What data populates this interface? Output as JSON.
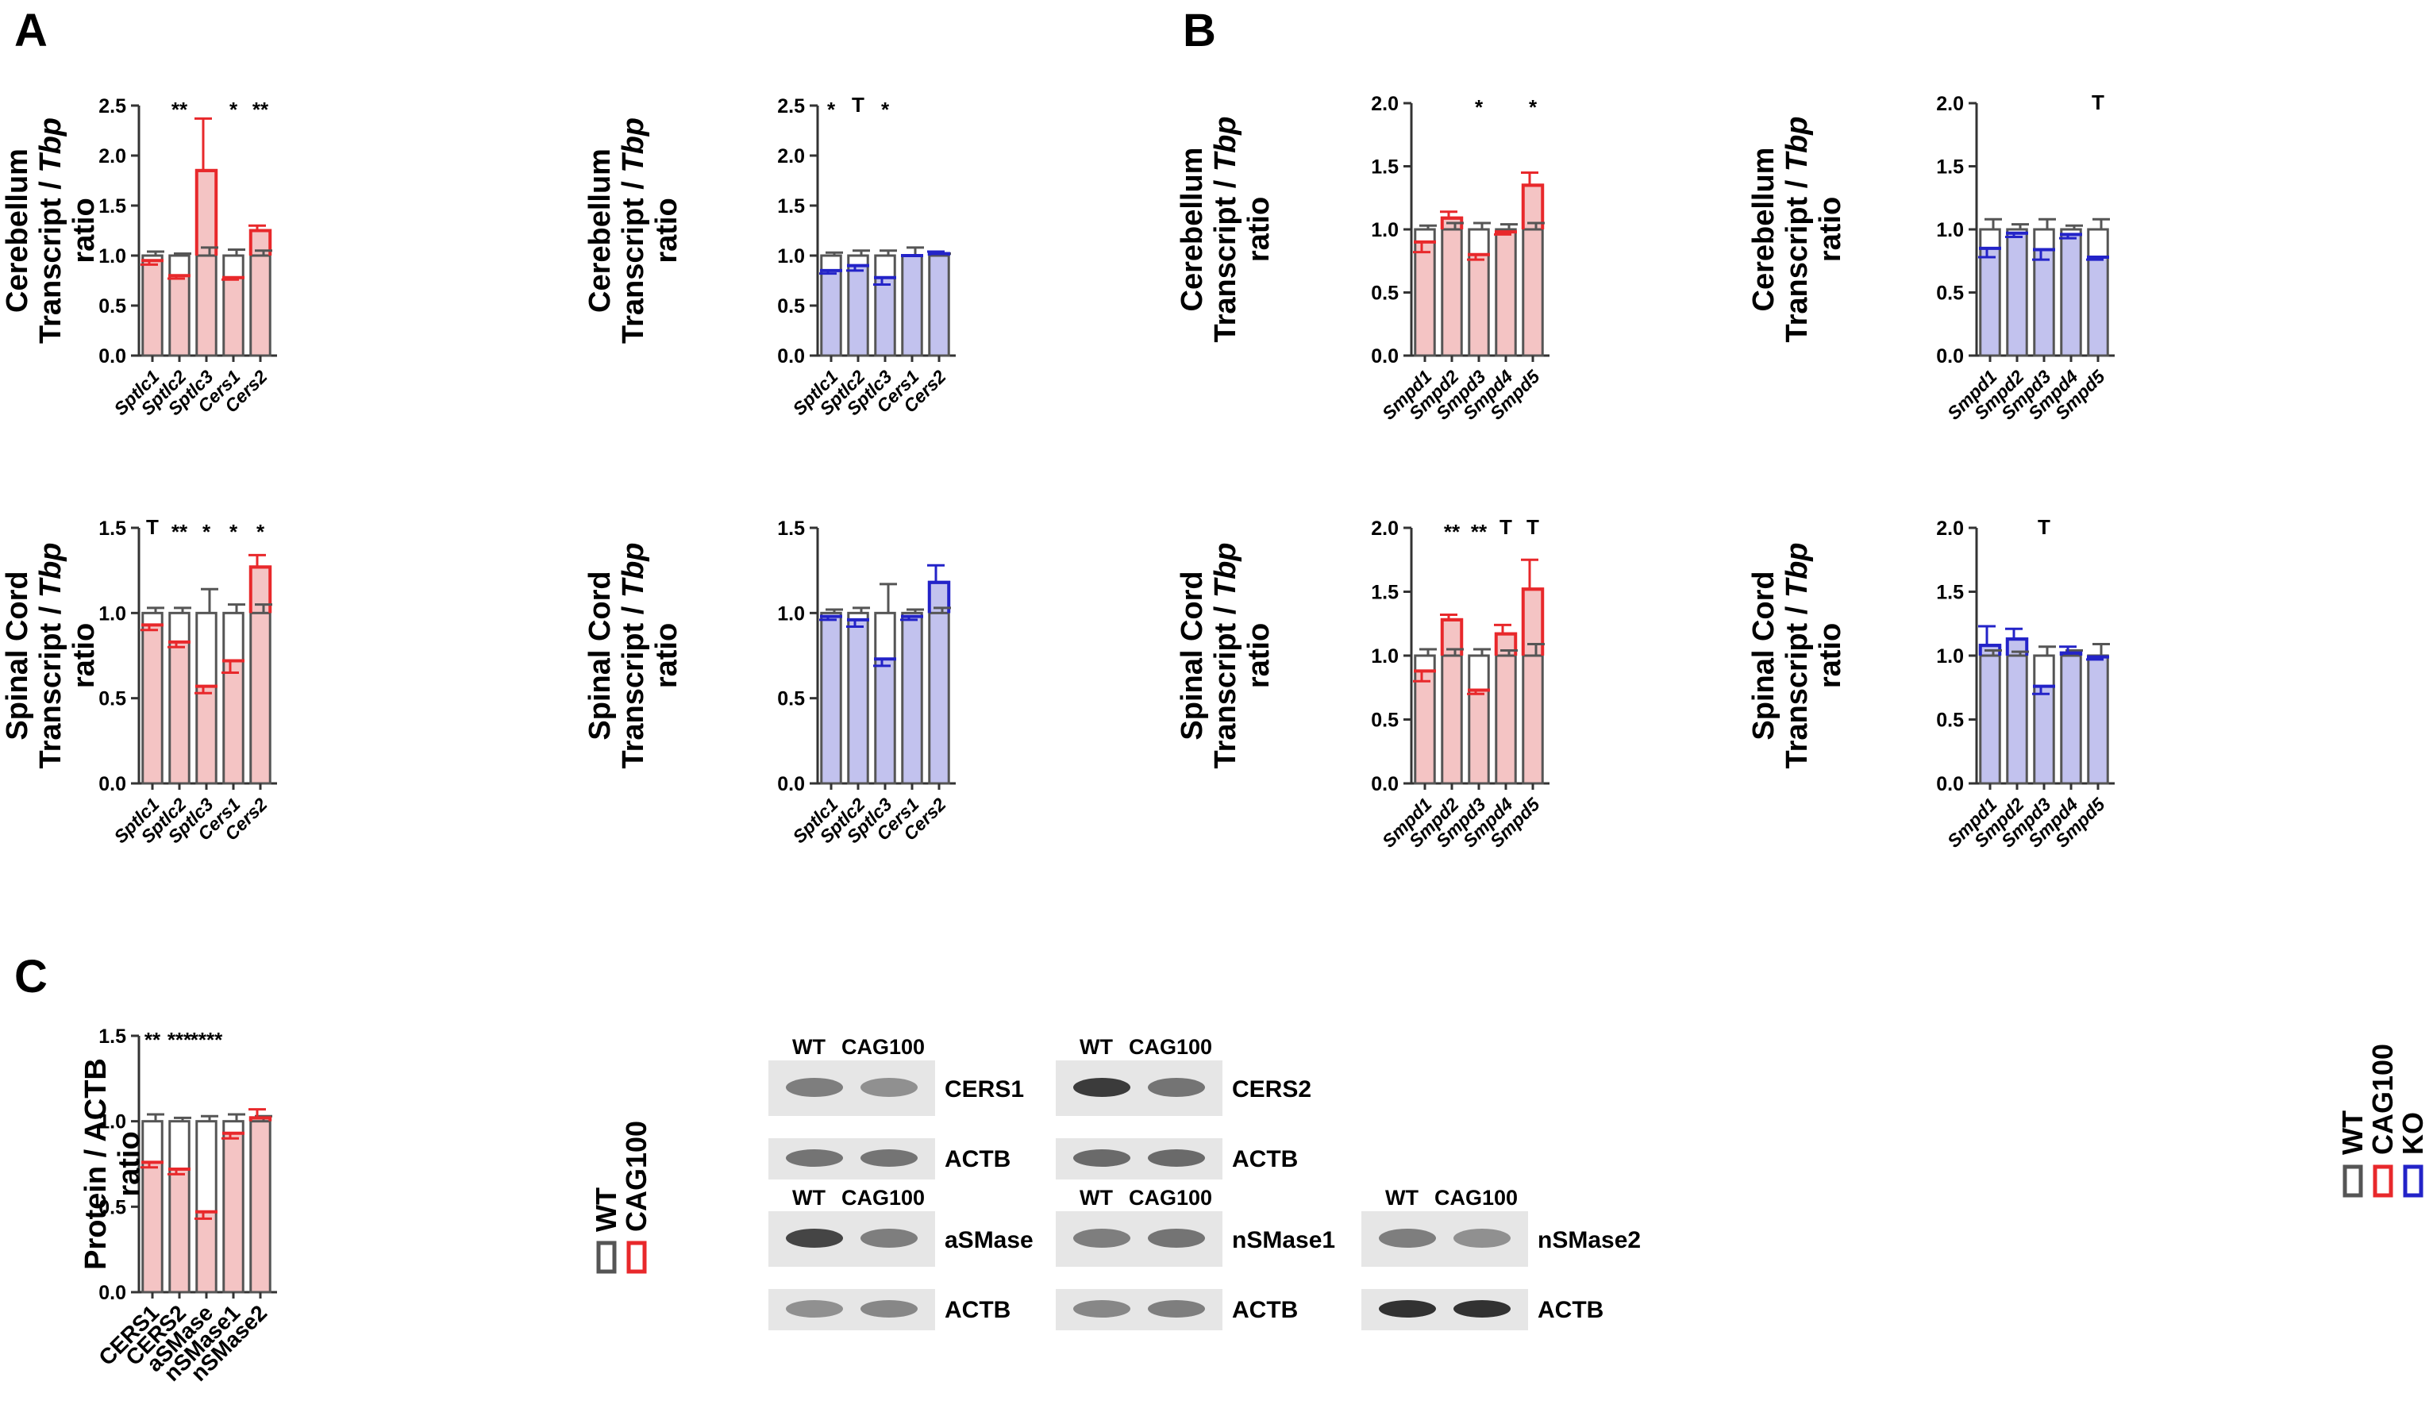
{
  "panel_labels": [
    "A",
    "B",
    "C"
  ],
  "colors": {
    "wt": "#555555",
    "cag100": "#e8282b",
    "ko": "#2323c8",
    "cag100_fill": "#f4c4c4",
    "ko_fill": "#c2c2ee"
  },
  "legend_transcript": [
    "WT",
    "CAG100",
    "KO"
  ],
  "legend_protein": [
    "WT",
    "CAG100"
  ],
  "chart_data": [
    {
      "id": "A-cb-cag",
      "type": "bar",
      "group": "CAG100",
      "ylabel": [
        "Cerebellum",
        "Transcript / Tbp",
        "ratio"
      ],
      "ylim": [
        0,
        2.5
      ],
      "yticks": [
        "0.0",
        "0.5",
        "1.0",
        "1.5",
        "2.0",
        "2.5"
      ],
      "categories": [
        "Sptlc1",
        "Sptlc2",
        "Sptlc3",
        "Cers1",
        "Cers2"
      ],
      "italic": true,
      "series": [
        {
          "name": "WT",
          "values": [
            1.0,
            1.0,
            1.0,
            1.0,
            1.0
          ],
          "errors": [
            0.04,
            0.02,
            0.08,
            0.06,
            0.05
          ]
        },
        {
          "name": "CAG100",
          "values": [
            0.95,
            0.8,
            1.85,
            0.78,
            1.25
          ],
          "errors": [
            0.04,
            0.03,
            0.52,
            0.02,
            0.05
          ]
        }
      ],
      "significance": [
        "",
        "**",
        "",
        "*",
        "**"
      ]
    },
    {
      "id": "A-cb-ko",
      "type": "bar",
      "group": "KO",
      "ylabel": [
        "Cerebellum",
        "Transcript / Tbp",
        "ratio"
      ],
      "ylim": [
        0,
        2.5
      ],
      "yticks": [
        "0.0",
        "0.5",
        "1.0",
        "1.5",
        "2.0",
        "2.5"
      ],
      "categories": [
        "Sptlc1",
        "Sptlc2",
        "Sptlc3",
        "Cers1",
        "Cers2"
      ],
      "italic": true,
      "series": [
        {
          "name": "WT",
          "values": [
            1.0,
            1.0,
            1.0,
            1.0,
            1.0
          ],
          "errors": [
            0.03,
            0.05,
            0.05,
            0.08,
            0.02
          ]
        },
        {
          "name": "KO",
          "values": [
            0.85,
            0.9,
            0.78,
            1.0,
            1.02
          ],
          "errors": [
            0.03,
            0.05,
            0.07,
            0.0,
            0.02
          ]
        }
      ],
      "significance": [
        "*",
        "T",
        "*",
        "",
        ""
      ]
    },
    {
      "id": "A-sc-cag",
      "type": "bar",
      "group": "CAG100",
      "ylabel": [
        "Spinal Cord",
        "Transcript / Tbp",
        "ratio"
      ],
      "ylim": [
        0,
        1.5
      ],
      "yticks": [
        "0.0",
        "0.5",
        "1.0",
        "1.5"
      ],
      "categories": [
        "Sptlc1",
        "Sptlc2",
        "Sptlc3",
        "Cers1",
        "Cers2"
      ],
      "italic": true,
      "series": [
        {
          "name": "WT",
          "values": [
            1.0,
            1.0,
            1.0,
            1.0,
            1.0
          ],
          "errors": [
            0.03,
            0.03,
            0.14,
            0.05,
            0.05
          ]
        },
        {
          "name": "CAG100",
          "values": [
            0.93,
            0.83,
            0.57,
            0.72,
            1.27
          ],
          "errors": [
            0.03,
            0.03,
            0.04,
            0.07,
            0.07
          ]
        }
      ],
      "significance": [
        "T",
        "**",
        "*",
        "*",
        "*"
      ]
    },
    {
      "id": "A-sc-ko",
      "type": "bar",
      "group": "KO",
      "ylabel": [
        "Spinal Cord",
        "Transcript / Tbp",
        "ratio"
      ],
      "ylim": [
        0,
        1.5
      ],
      "yticks": [
        "0.0",
        "0.5",
        "1.0",
        "1.5"
      ],
      "categories": [
        "Sptlc1",
        "Sptlc2",
        "Sptlc3",
        "Cers1",
        "Cers2"
      ],
      "italic": true,
      "series": [
        {
          "name": "WT",
          "values": [
            1.0,
            1.0,
            1.0,
            1.0,
            1.0
          ],
          "errors": [
            0.02,
            0.03,
            0.17,
            0.02,
            0.03
          ]
        },
        {
          "name": "KO",
          "values": [
            0.98,
            0.96,
            0.73,
            0.98,
            1.18
          ],
          "errors": [
            0.02,
            0.04,
            0.04,
            0.02,
            0.1
          ]
        }
      ],
      "significance": [
        "",
        "",
        "",
        "",
        ""
      ]
    },
    {
      "id": "B-cb-cag",
      "type": "bar",
      "group": "CAG100",
      "ylabel": [
        "Cerebellum",
        "Transcript / Tbp",
        "ratio"
      ],
      "ylim": [
        0,
        2.0
      ],
      "yticks": [
        "0.0",
        "0.5",
        "1.0",
        "1.5",
        "2.0"
      ],
      "categories": [
        "Smpd1",
        "Smpd2",
        "Smpd3",
        "Smpd4",
        "Smpd5"
      ],
      "italic": true,
      "series": [
        {
          "name": "WT",
          "values": [
            1.0,
            1.0,
            1.0,
            1.0,
            1.0
          ],
          "errors": [
            0.03,
            0.05,
            0.05,
            0.04,
            0.05
          ]
        },
        {
          "name": "CAG100",
          "values": [
            0.9,
            1.09,
            0.8,
            0.98,
            1.35
          ],
          "errors": [
            0.08,
            0.05,
            0.04,
            0.02,
            0.1
          ]
        }
      ],
      "significance": [
        "",
        "",
        "*",
        "",
        "*"
      ]
    },
    {
      "id": "B-cb-ko",
      "type": "bar",
      "group": "KO",
      "ylabel": [
        "Cerebellum",
        "Transcript / Tbp",
        "ratio"
      ],
      "ylim": [
        0,
        2.0
      ],
      "yticks": [
        "0.0",
        "0.5",
        "1.0",
        "1.5",
        "2.0"
      ],
      "categories": [
        "Smpd1",
        "Smpd2",
        "Smpd3",
        "Smpd4",
        "Smpd5"
      ],
      "italic": true,
      "series": [
        {
          "name": "WT",
          "values": [
            1.0,
            1.0,
            1.0,
            1.0,
            1.0
          ],
          "errors": [
            0.08,
            0.04,
            0.08,
            0.03,
            0.08
          ]
        },
        {
          "name": "KO",
          "values": [
            0.85,
            0.97,
            0.84,
            0.96,
            0.78
          ],
          "errors": [
            0.07,
            0.03,
            0.08,
            0.03,
            0.02
          ]
        }
      ],
      "significance": [
        "",
        "",
        "",
        "",
        "T"
      ]
    },
    {
      "id": "B-sc-cag",
      "type": "bar",
      "group": "CAG100",
      "ylabel": [
        "Spinal Cord",
        "Transcript / Tbp",
        "ratio"
      ],
      "ylim": [
        0,
        2.0
      ],
      "yticks": [
        "0.0",
        "0.5",
        "1.0",
        "1.5",
        "2.0"
      ],
      "categories": [
        "Smpd1",
        "Smpd2",
        "Smpd3",
        "Smpd4",
        "Smpd5"
      ],
      "italic": true,
      "series": [
        {
          "name": "WT",
          "values": [
            1.0,
            1.0,
            1.0,
            1.0,
            1.0
          ],
          "errors": [
            0.05,
            0.05,
            0.05,
            0.04,
            0.09
          ]
        },
        {
          "name": "CAG100",
          "values": [
            0.88,
            1.28,
            0.73,
            1.17,
            1.52
          ],
          "errors": [
            0.08,
            0.04,
            0.03,
            0.07,
            0.23
          ]
        }
      ],
      "significance": [
        "",
        "**",
        "**",
        "T",
        "T"
      ]
    },
    {
      "id": "B-sc-ko",
      "type": "bar",
      "group": "KO",
      "ylabel": [
        "Spinal Cord",
        "Transcript / Tbp",
        "ratio"
      ],
      "ylim": [
        0,
        2.0
      ],
      "yticks": [
        "0.0",
        "0.5",
        "1.0",
        "1.5",
        "2.0"
      ],
      "categories": [
        "Smpd1",
        "Smpd2",
        "Smpd3",
        "Smpd4",
        "Smpd5"
      ],
      "italic": true,
      "series": [
        {
          "name": "WT",
          "values": [
            1.0,
            1.0,
            1.0,
            1.0,
            1.0
          ],
          "errors": [
            0.04,
            0.03,
            0.07,
            0.04,
            0.09
          ]
        },
        {
          "name": "KO",
          "values": [
            1.08,
            1.13,
            0.76,
            1.02,
            0.99
          ],
          "errors": [
            0.15,
            0.08,
            0.06,
            0.05,
            0.02
          ]
        }
      ],
      "significance": [
        "",
        "",
        "T",
        "",
        ""
      ]
    },
    {
      "id": "C-protein",
      "type": "bar",
      "group": "CAG100",
      "ylabel": [
        "Protein / ACTB",
        "ratio"
      ],
      "ylim": [
        0,
        1.5
      ],
      "yticks": [
        "0.0",
        "0.5",
        "1.0",
        "1.5"
      ],
      "categories": [
        "CERS1",
        "CERS2",
        "aSMase",
        "nSMase1",
        "nSMase2"
      ],
      "italic": false,
      "series": [
        {
          "name": "WT",
          "values": [
            1.0,
            1.0,
            1.0,
            1.0,
            1.0
          ],
          "errors": [
            0.04,
            0.02,
            0.03,
            0.04,
            0.03
          ]
        },
        {
          "name": "CAG100",
          "values": [
            0.76,
            0.72,
            0.47,
            0.93,
            1.02
          ],
          "errors": [
            0.03,
            0.03,
            0.04,
            0.03,
            0.05
          ]
        }
      ],
      "significance": [
        "**",
        "***",
        "****",
        "",
        ""
      ]
    }
  ],
  "western_blots": [
    {
      "header": [
        "WT",
        "CAG100"
      ],
      "labels": [
        "CERS1",
        "ACTB"
      ]
    },
    {
      "header": [
        "WT",
        "CAG100"
      ],
      "labels": [
        "CERS2",
        "ACTB"
      ]
    },
    {
      "header": [
        "WT",
        "CAG100"
      ],
      "labels": [
        "aSMase",
        "ACTB"
      ]
    },
    {
      "header": [
        "WT",
        "CAG100"
      ],
      "labels": [
        "nSMase1",
        "ACTB"
      ]
    },
    {
      "header": [
        "WT",
        "CAG100"
      ],
      "labels": [
        "nSMase2",
        "ACTB"
      ]
    }
  ]
}
